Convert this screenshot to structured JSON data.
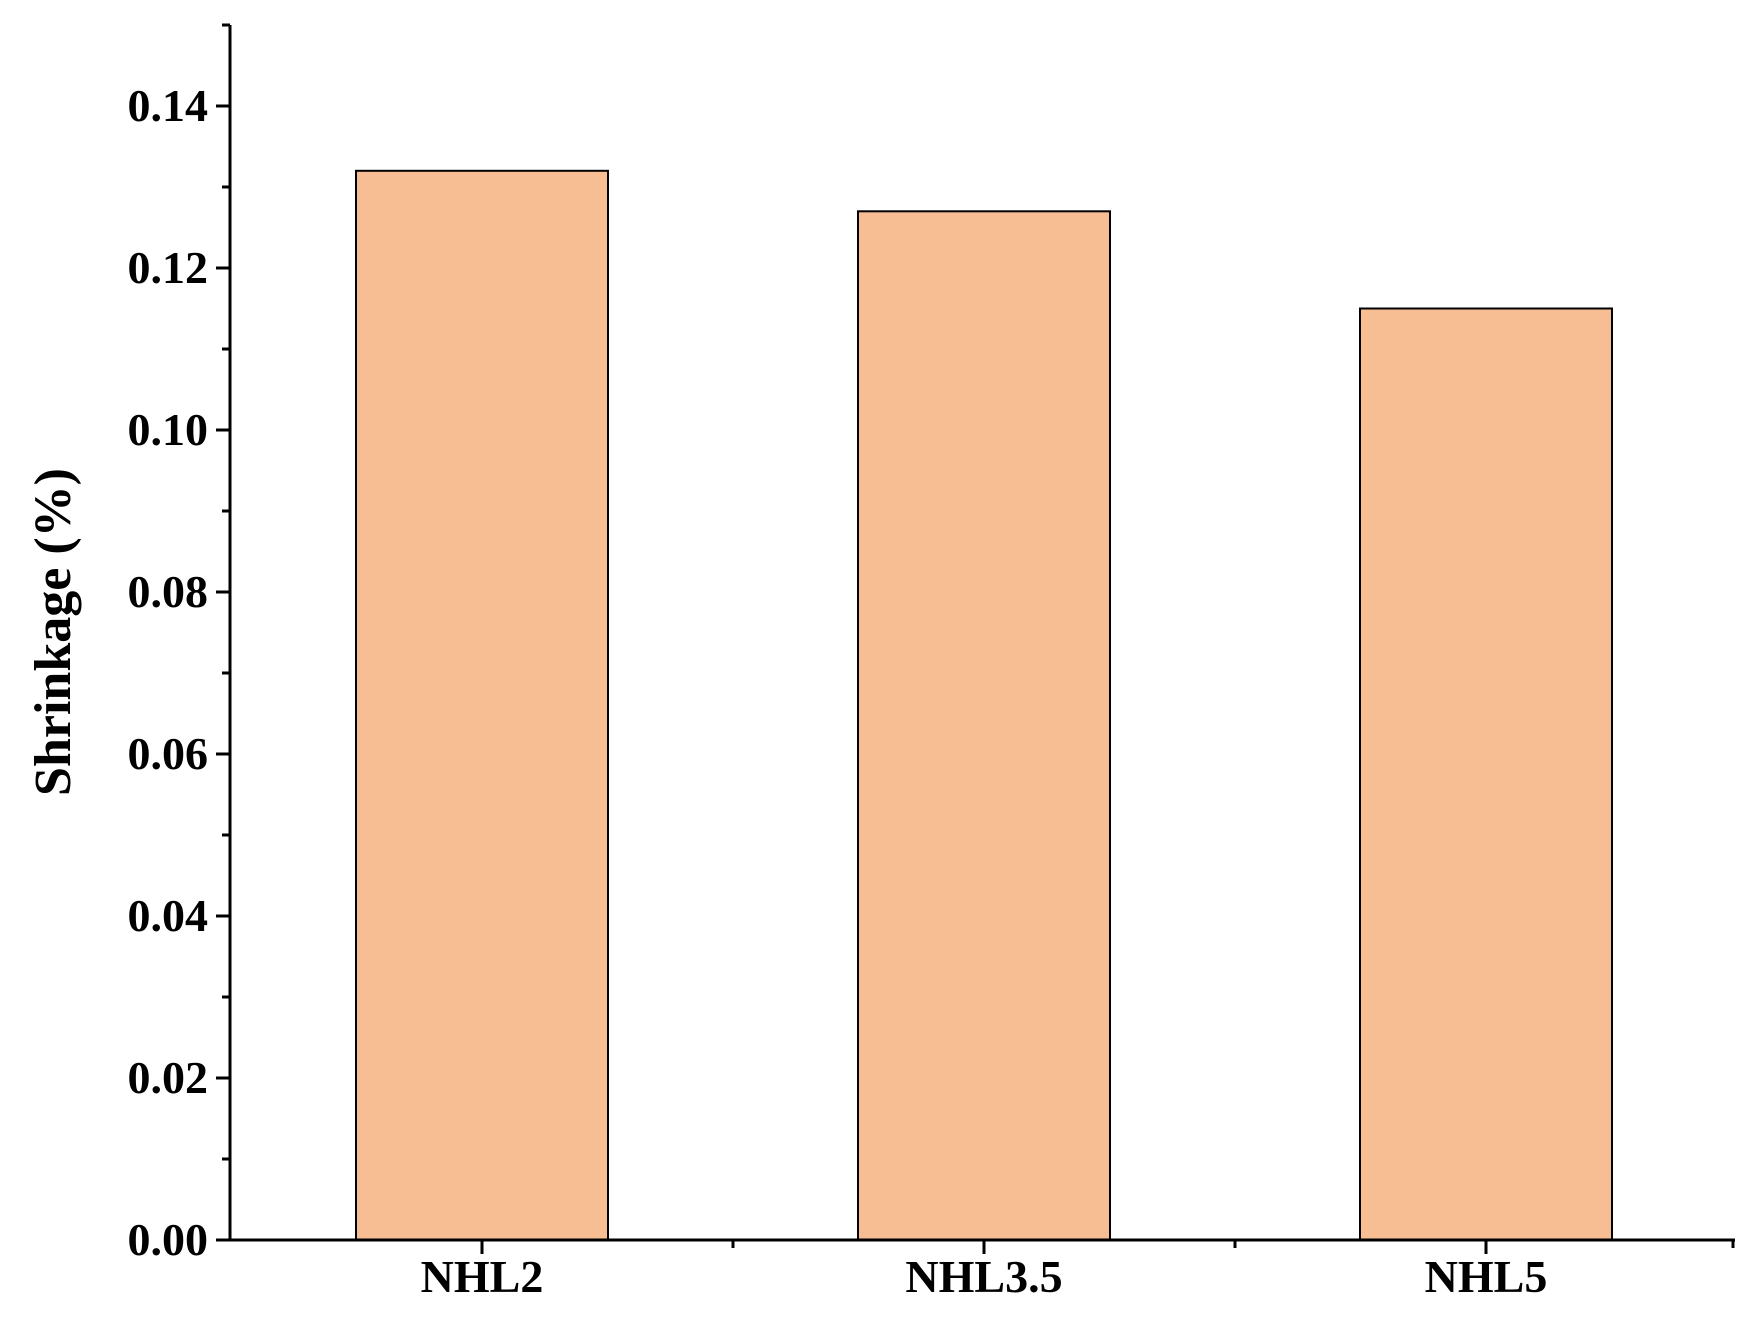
{
  "chart_data": {
    "type": "bar",
    "title": "",
    "xlabel": "",
    "ylabel": "Shrinkage (%)",
    "categories": [
      "NHL2",
      "NHL3.5",
      "NHL5"
    ],
    "values": [
      0.132,
      0.127,
      0.115
    ],
    "ylim": [
      0,
      0.15
    ],
    "yticks": [
      "0.00",
      "0.02",
      "0.04",
      "0.06",
      "0.08",
      "0.10",
      "0.12",
      "0.14"
    ],
    "bar_color": "#f7be94",
    "grid": false,
    "legend": "none"
  }
}
